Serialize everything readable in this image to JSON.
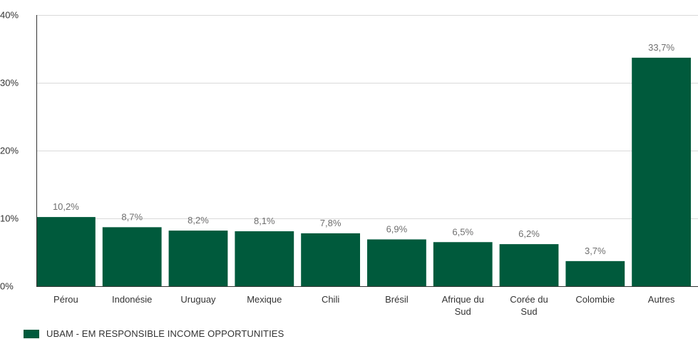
{
  "colors": {
    "bar": "#005a3c",
    "grid": "#d9d9d9",
    "axis": "#333333",
    "text": "#333333",
    "value_label": "#6f6f6f"
  },
  "chart_data": {
    "type": "bar",
    "categories": [
      [
        "Pérou"
      ],
      [
        "Indonésie"
      ],
      [
        "Uruguay"
      ],
      [
        "Mexique"
      ],
      [
        "Chili"
      ],
      [
        "Brésil"
      ],
      [
        "Afrique du",
        "Sud"
      ],
      [
        "Corée du",
        "Sud"
      ],
      [
        "Colombie"
      ],
      [
        "Autres"
      ]
    ],
    "series": [
      {
        "name": "UBAM - EM RESPONSIBLE INCOME OPPORTUNITIES",
        "values": [
          10.2,
          8.7,
          8.2,
          8.1,
          7.8,
          6.9,
          6.5,
          6.2,
          3.7,
          33.7
        ],
        "value_labels": [
          "10,2%",
          "8,7%",
          "8,2%",
          "8,1%",
          "7,8%",
          "6,9%",
          "6,5%",
          "6,2%",
          "3,7%",
          "33,7%"
        ]
      }
    ],
    "y_ticks": [
      0,
      10,
      20,
      30,
      40
    ],
    "y_tick_labels": [
      "0%",
      "10%",
      "20%",
      "30%",
      "40%"
    ],
    "ylim": [
      0,
      40
    ],
    "grid": true,
    "legend_position": "bottom-left",
    "title": "",
    "xlabel": "",
    "ylabel": ""
  }
}
